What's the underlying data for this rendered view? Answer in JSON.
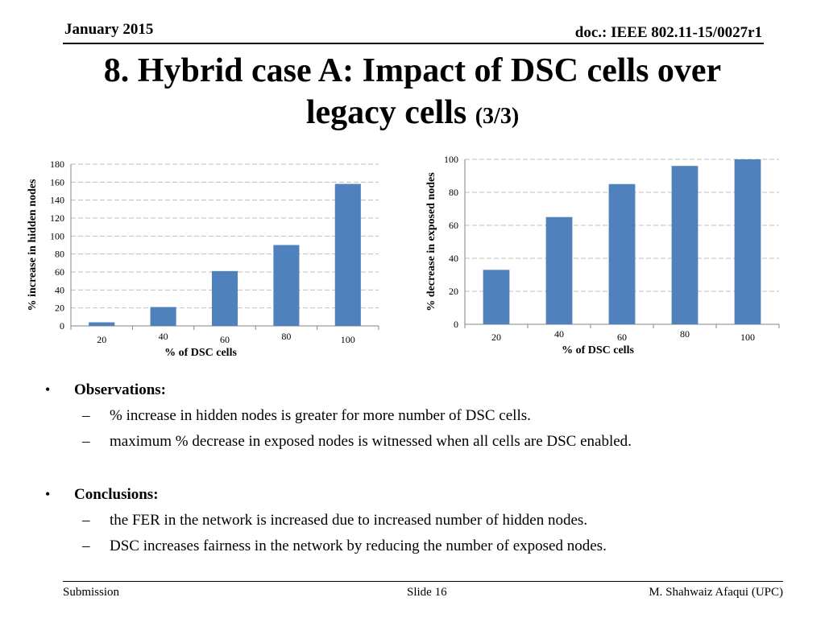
{
  "header": {
    "date": "January 2015",
    "doc": "doc.: IEEE 802.11-15/0027r1"
  },
  "title": {
    "main_line1": "8. Hybrid case A: Impact of DSC cells over",
    "main_line2": "legacy cells",
    "suffix": "(3/3)"
  },
  "chart_data": [
    {
      "type": "bar",
      "categories": [
        "20",
        "40",
        "60",
        "80",
        "100"
      ],
      "values": [
        4,
        21,
        61,
        90,
        158
      ],
      "xlabel": "% of DSC cells",
      "ylabel": "% increase in hidden nodes",
      "ylim": [
        0,
        180
      ],
      "yticks": [
        "0",
        "20",
        "40",
        "60",
        "80",
        "100",
        "120",
        "140",
        "160",
        "180"
      ],
      "grid": true,
      "bar_color": "#4f81bd"
    },
    {
      "type": "bar",
      "categories": [
        "20",
        "40",
        "60",
        "80",
        "100"
      ],
      "values": [
        33,
        65,
        85,
        96,
        100
      ],
      "xlabel": "% of DSC cells",
      "ylabel": "% decrease in exposed nodes",
      "ylim": [
        0,
        100
      ],
      "yticks": [
        "0",
        "20",
        "40",
        "60",
        "80",
        "100"
      ],
      "grid": true,
      "bar_color": "#4f81bd"
    }
  ],
  "observations": {
    "heading": "Observations:",
    "items": [
      "% increase in hidden nodes is greater for more number of DSC cells.",
      "maximum % decrease in exposed nodes is witnessed when all cells  are DSC enabled."
    ]
  },
  "conclusions": {
    "heading": "Conclusions:",
    "items": [
      "the FER in the network is increased due to increased number of hidden nodes.",
      "DSC increases fairness in the network by reducing the number of exposed nodes."
    ]
  },
  "footer": {
    "left": "Submission",
    "middle": "Slide 16",
    "right": "M. Shahwaiz Afaqui (UPC)"
  },
  "glyphs": {
    "bullet": "•",
    "dash": "–"
  }
}
